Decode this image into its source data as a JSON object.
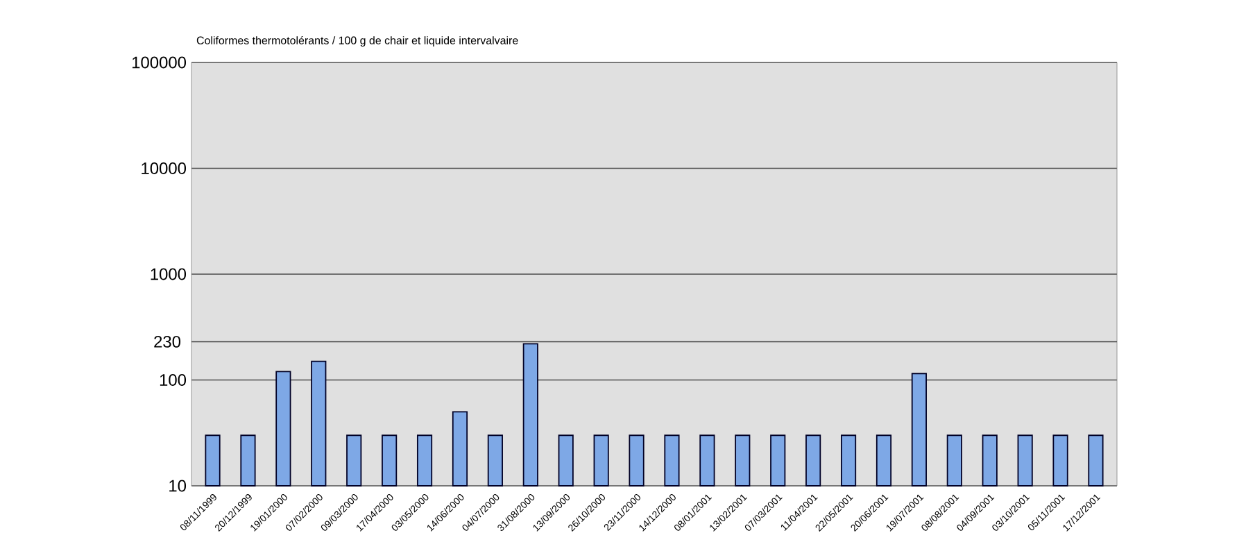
{
  "chart_data": {
    "type": "bar",
    "title": "Coliformes thermotolérants / 100 g de chair et liquide intervalvaire",
    "categories": [
      "08/11/1999",
      "20/12/1999",
      "19/01/2000",
      "07/02/2000",
      "09/03/2000",
      "17/04/2000",
      "03/05/2000",
      "14/06/2000",
      "04/07/2000",
      "31/08/2000",
      "13/09/2000",
      "26/10/2000",
      "23/11/2000",
      "14/12/2000",
      "08/01/2001",
      "13/02/2001",
      "07/03/2001",
      "11/04/2001",
      "22/05/2001",
      "20/06/2001",
      "19/07/2001",
      "08/08/2001",
      "04/09/2001",
      "03/10/2001",
      "05/11/2001",
      "17/12/2001"
    ],
    "values": [
      30,
      30,
      120,
      150,
      30,
      30,
      30,
      50,
      30,
      220,
      30,
      30,
      30,
      30,
      30,
      30,
      30,
      30,
      30,
      30,
      115,
      30,
      30,
      30,
      30,
      30
    ],
    "color": "#7ea8e6",
    "log": true,
    "ylim": [
      10,
      100000
    ],
    "yticks": [
      10,
      100,
      1000,
      10000,
      100000
    ],
    "grid": "y",
    "ref_lines": [
      {
        "axis": "y",
        "value": 230,
        "label": "230"
      }
    ]
  }
}
